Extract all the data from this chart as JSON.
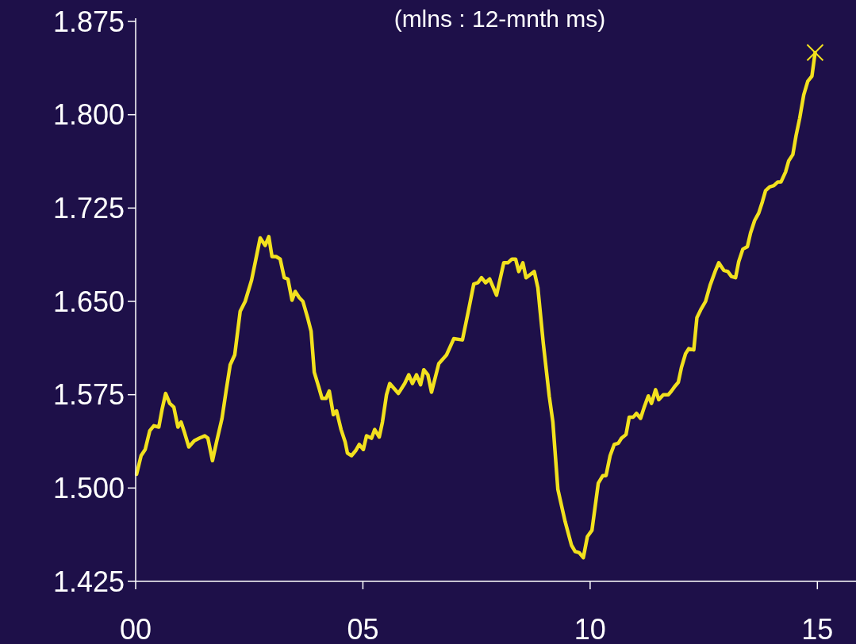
{
  "chart_data": {
    "type": "line",
    "title": "(mlns : 12-mnth ms)",
    "x": [
      0.02,
      0.12,
      0.21,
      0.31,
      0.4,
      0.51,
      0.58,
      0.66,
      0.75,
      0.84,
      0.93,
      1.0,
      1.08,
      1.17,
      1.29,
      1.4,
      1.52,
      1.59,
      1.69,
      1.78,
      1.9,
      1.99,
      2.08,
      2.18,
      2.3,
      2.41,
      2.55,
      2.64,
      2.74,
      2.85,
      2.93,
      3.0,
      3.09,
      3.18,
      3.27,
      3.35,
      3.44,
      3.51,
      3.6,
      3.68,
      3.79,
      3.86,
      3.93,
      4.03,
      4.1,
      4.19,
      4.26,
      4.35,
      4.42,
      4.52,
      4.61,
      4.66,
      4.75,
      4.84,
      4.92,
      5.01,
      5.08,
      5.19,
      5.26,
      5.36,
      5.43,
      5.52,
      5.59,
      5.78,
      5.92,
      6.01,
      6.09,
      6.18,
      6.27,
      6.34,
      6.43,
      6.51,
      6.67,
      6.84,
      7.0,
      7.19,
      7.32,
      7.44,
      7.53,
      7.61,
      7.7,
      7.79,
      7.94,
      8.1,
      8.19,
      8.28,
      8.36,
      8.43,
      8.52,
      8.59,
      8.77,
      8.85,
      8.97,
      9.1,
      9.18,
      9.29,
      9.45,
      9.59,
      9.67,
      9.76,
      9.85,
      9.94,
      10.04,
      10.18,
      10.28,
      10.35,
      10.44,
      10.53,
      10.62,
      10.69,
      10.79,
      10.86,
      10.95,
      11.02,
      11.11,
      11.19,
      11.28,
      11.35,
      11.44,
      11.51,
      11.61,
      11.72,
      11.79,
      11.87,
      11.94,
      12.01,
      12.1,
      12.17,
      12.28,
      12.35,
      12.43,
      12.54,
      12.64,
      12.76,
      12.83,
      12.94,
      13.03,
      13.11,
      13.2,
      13.27,
      13.36,
      13.46,
      13.53,
      13.62,
      13.71,
      13.79,
      13.86,
      13.95,
      14.04,
      14.13,
      14.2,
      14.3,
      14.37,
      14.46,
      14.53,
      14.61,
      14.7,
      14.79,
      14.88,
      14.95
    ],
    "series": [
      {
        "color": "#f2e11e",
        "marker": "none",
        "values": [
          1.511,
          1.526,
          1.531,
          1.546,
          1.55,
          1.549,
          1.563,
          1.576,
          1.568,
          1.565,
          1.549,
          1.553,
          1.544,
          1.533,
          1.538,
          1.54,
          1.542,
          1.54,
          1.522,
          1.537,
          1.556,
          1.578,
          1.599,
          1.607,
          1.642,
          1.65,
          1.667,
          1.683,
          1.701,
          1.695,
          1.702,
          1.686,
          1.686,
          1.684,
          1.669,
          1.668,
          1.651,
          1.658,
          1.653,
          1.65,
          1.636,
          1.626,
          1.593,
          1.581,
          1.572,
          1.572,
          1.578,
          1.559,
          1.562,
          1.547,
          1.537,
          1.528,
          1.526,
          1.53,
          1.535,
          1.531,
          1.542,
          1.54,
          1.547,
          1.541,
          1.553,
          1.575,
          1.584,
          1.576,
          1.584,
          1.591,
          1.584,
          1.591,
          1.583,
          1.595,
          1.591,
          1.577,
          1.6,
          1.607,
          1.62,
          1.619,
          1.642,
          1.664,
          1.665,
          1.669,
          1.665,
          1.668,
          1.655,
          1.681,
          1.681,
          1.684,
          1.684,
          1.674,
          1.681,
          1.669,
          1.674,
          1.661,
          1.616,
          1.574,
          1.553,
          1.499,
          1.473,
          1.454,
          1.449,
          1.448,
          1.444,
          1.461,
          1.466,
          1.504,
          1.51,
          1.51,
          1.526,
          1.535,
          1.536,
          1.54,
          1.543,
          1.557,
          1.557,
          1.56,
          1.556,
          1.565,
          1.574,
          1.568,
          1.579,
          1.571,
          1.575,
          1.575,
          1.578,
          1.582,
          1.585,
          1.597,
          1.608,
          1.612,
          1.611,
          1.637,
          1.643,
          1.65,
          1.663,
          1.675,
          1.681,
          1.675,
          1.674,
          1.67,
          1.669,
          1.682,
          1.692,
          1.694,
          1.705,
          1.715,
          1.721,
          1.73,
          1.739,
          1.742,
          1.743,
          1.746,
          1.746,
          1.754,
          1.763,
          1.768,
          1.783,
          1.797,
          1.816,
          1.827,
          1.831,
          1.85
        ]
      },
      {
        "type": "scatter",
        "color": "#f2e11e",
        "marker": "cross",
        "x": [
          14.95
        ],
        "values": [
          1.85
        ]
      }
    ],
    "xlim": [
      0,
      15.85
    ],
    "xticks": [
      {
        "value": 0,
        "label": "00"
      },
      {
        "value": 5,
        "label": "05"
      },
      {
        "value": 10,
        "label": "10"
      },
      {
        "value": 15,
        "label": "15"
      }
    ],
    "ylim": [
      1.425,
      1.875
    ],
    "yticks": [
      1.425,
      {
        "value": 1.5,
        "label": "1.500"
      },
      1.575,
      {
        "value": 1.65,
        "label": "1.650"
      },
      1.725,
      {
        "value": 1.8,
        "label": "1.800"
      },
      1.875
    ],
    "grid": false
  }
}
